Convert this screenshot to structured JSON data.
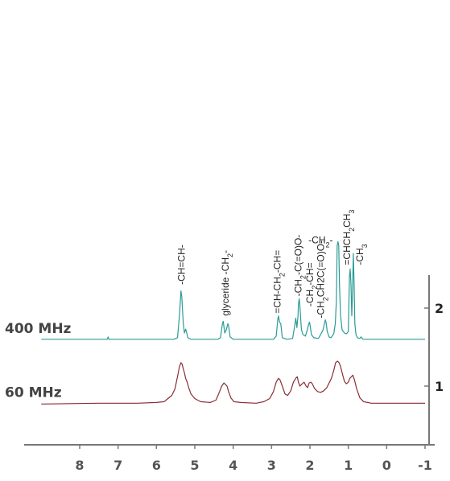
{
  "chart_data": {
    "type": "line",
    "title": "",
    "xlabel": "",
    "ylabel": "",
    "xlim": [
      9,
      -1
    ],
    "x_ticks": [
      "8",
      "7",
      "6",
      "5",
      "4",
      "3",
      "2",
      "1",
      "0",
      "-1"
    ],
    "x_tick_values": [
      8,
      7,
      6,
      5,
      4,
      3,
      2,
      1,
      0,
      -1
    ],
    "ylim": [
      0.55,
      2.85
    ],
    "y_ticks": [
      "1",
      "2"
    ],
    "y_tick_values": [
      1,
      2
    ],
    "series": [
      {
        "name": "400 MHz",
        "color": "#2a9b96",
        "baseline": 1.6,
        "points": [
          [
            9.0,
            1.6
          ],
          [
            7.28,
            1.6
          ],
          [
            7.26,
            1.63
          ],
          [
            7.24,
            1.6
          ],
          [
            5.55,
            1.6
          ],
          [
            5.45,
            1.62
          ],
          [
            5.4,
            1.9
          ],
          [
            5.36,
            2.22
          ],
          [
            5.34,
            2.15
          ],
          [
            5.32,
            1.98
          ],
          [
            5.3,
            1.8
          ],
          [
            5.27,
            1.68
          ],
          [
            5.24,
            1.73
          ],
          [
            5.22,
            1.7
          ],
          [
            5.18,
            1.62
          ],
          [
            5.1,
            1.6
          ],
          [
            4.4,
            1.6
          ],
          [
            4.33,
            1.62
          ],
          [
            4.28,
            1.8
          ],
          [
            4.26,
            1.83
          ],
          [
            4.22,
            1.68
          ],
          [
            4.18,
            1.72
          ],
          [
            4.14,
            1.8
          ],
          [
            4.12,
            1.78
          ],
          [
            4.08,
            1.63
          ],
          [
            4.0,
            1.6
          ],
          [
            2.95,
            1.6
          ],
          [
            2.88,
            1.64
          ],
          [
            2.84,
            1.85
          ],
          [
            2.82,
            1.9
          ],
          [
            2.79,
            1.82
          ],
          [
            2.76,
            1.8
          ],
          [
            2.72,
            1.62
          ],
          [
            2.6,
            1.6
          ],
          [
            2.45,
            1.61
          ],
          [
            2.4,
            1.76
          ],
          [
            2.37,
            1.87
          ],
          [
            2.34,
            1.75
          ],
          [
            2.31,
            1.9
          ],
          [
            2.3,
            2.05
          ],
          [
            2.28,
            2.12
          ],
          [
            2.26,
            2.02
          ],
          [
            2.24,
            1.85
          ],
          [
            2.22,
            1.72
          ],
          [
            2.18,
            1.66
          ],
          [
            2.12,
            1.64
          ],
          [
            2.07,
            1.72
          ],
          [
            2.04,
            1.78
          ],
          [
            2.01,
            1.82
          ],
          [
            1.99,
            1.76
          ],
          [
            1.96,
            1.66
          ],
          [
            1.9,
            1.62
          ],
          [
            1.78,
            1.61
          ],
          [
            1.72,
            1.66
          ],
          [
            1.66,
            1.72
          ],
          [
            1.6,
            1.85
          ],
          [
            1.58,
            1.82
          ],
          [
            1.55,
            1.7
          ],
          [
            1.5,
            1.63
          ],
          [
            1.45,
            1.62
          ],
          [
            1.38,
            1.67
          ],
          [
            1.34,
            1.8
          ],
          [
            1.31,
            2.1
          ],
          [
            1.29,
            2.8
          ],
          [
            1.27,
            2.85
          ],
          [
            1.25,
            2.8
          ],
          [
            1.23,
            2.3
          ],
          [
            1.2,
            1.9
          ],
          [
            1.16,
            1.72
          ],
          [
            1.1,
            1.68
          ],
          [
            1.05,
            1.67
          ],
          [
            1.0,
            1.7
          ],
          [
            0.97,
            2.4
          ],
          [
            0.95,
            2.5
          ],
          [
            0.93,
            2.3
          ],
          [
            0.91,
            1.9
          ],
          [
            0.89,
            2.2
          ],
          [
            0.87,
            2.7
          ],
          [
            0.85,
            2.35
          ],
          [
            0.83,
            1.8
          ],
          [
            0.8,
            1.66
          ],
          [
            0.76,
            1.62
          ],
          [
            0.7,
            1.61
          ],
          [
            0.67,
            1.63
          ],
          [
            0.62,
            1.6
          ],
          [
            -1.0,
            1.6
          ]
        ]
      },
      {
        "name": "60 MHz",
        "color": "#8a2e35",
        "baseline": 0.78,
        "points": [
          [
            9.0,
            0.77
          ],
          [
            7.5,
            0.78
          ],
          [
            7.0,
            0.78
          ],
          [
            6.5,
            0.78
          ],
          [
            6.0,
            0.79
          ],
          [
            5.8,
            0.8
          ],
          [
            5.7,
            0.84
          ],
          [
            5.6,
            0.88
          ],
          [
            5.52,
            0.96
          ],
          [
            5.45,
            1.12
          ],
          [
            5.4,
            1.25
          ],
          [
            5.36,
            1.3
          ],
          [
            5.33,
            1.28
          ],
          [
            5.3,
            1.22
          ],
          [
            5.27,
            1.17
          ],
          [
            5.24,
            1.1
          ],
          [
            5.2,
            1.05
          ],
          [
            5.16,
            0.98
          ],
          [
            5.1,
            0.9
          ],
          [
            5.0,
            0.84
          ],
          [
            4.85,
            0.8
          ],
          [
            4.6,
            0.79
          ],
          [
            4.45,
            0.82
          ],
          [
            4.38,
            0.9
          ],
          [
            4.3,
            1.0
          ],
          [
            4.24,
            1.04
          ],
          [
            4.2,
            1.02
          ],
          [
            4.16,
            1.0
          ],
          [
            4.12,
            0.93
          ],
          [
            4.06,
            0.85
          ],
          [
            3.98,
            0.8
          ],
          [
            3.8,
            0.79
          ],
          [
            3.4,
            0.78
          ],
          [
            3.2,
            0.8
          ],
          [
            3.05,
            0.84
          ],
          [
            2.95,
            0.93
          ],
          [
            2.88,
            1.05
          ],
          [
            2.82,
            1.1
          ],
          [
            2.78,
            1.08
          ],
          [
            2.72,
            1.0
          ],
          [
            2.65,
            0.9
          ],
          [
            2.58,
            0.88
          ],
          [
            2.5,
            0.94
          ],
          [
            2.43,
            1.05
          ],
          [
            2.37,
            1.1
          ],
          [
            2.33,
            1.12
          ],
          [
            2.3,
            1.05
          ],
          [
            2.26,
            1.0
          ],
          [
            2.2,
            1.03
          ],
          [
            2.15,
            1.05
          ],
          [
            2.1,
            1.0
          ],
          [
            2.06,
            0.98
          ],
          [
            2.02,
            1.04
          ],
          [
            1.98,
            1.05
          ],
          [
            1.94,
            1.03
          ],
          [
            1.88,
            0.97
          ],
          [
            1.8,
            0.93
          ],
          [
            1.72,
            0.92
          ],
          [
            1.64,
            0.94
          ],
          [
            1.56,
            0.98
          ],
          [
            1.5,
            1.04
          ],
          [
            1.44,
            1.1
          ],
          [
            1.38,
            1.2
          ],
          [
            1.33,
            1.3
          ],
          [
            1.28,
            1.32
          ],
          [
            1.24,
            1.3
          ],
          [
            1.2,
            1.25
          ],
          [
            1.15,
            1.15
          ],
          [
            1.1,
            1.06
          ],
          [
            1.05,
            1.03
          ],
          [
            1.0,
            1.05
          ],
          [
            0.96,
            1.1
          ],
          [
            0.92,
            1.12
          ],
          [
            0.88,
            1.14
          ],
          [
            0.84,
            1.08
          ],
          [
            0.78,
            0.96
          ],
          [
            0.7,
            0.85
          ],
          [
            0.6,
            0.8
          ],
          [
            0.4,
            0.78
          ],
          [
            0.0,
            0.78
          ],
          [
            -0.5,
            0.78
          ],
          [
            -1.0,
            0.78
          ]
        ]
      }
    ],
    "peak_labels": [
      {
        "text": "-CH=CH-",
        "x": 5.35,
        "y": 2.3,
        "rotated": true
      },
      {
        "text": "glyceride -CH",
        "sub": "2",
        "tail": "-",
        "x": 4.2,
        "y": 1.9,
        "rotated": true
      },
      {
        "text": "=CH-CH",
        "sub": "2",
        "tail": "-CH=",
        "x": 2.85,
        "y": 1.93,
        "rotated": true
      },
      {
        "text": "-CH",
        "sub": "2",
        "tail": "-C(=O)O-",
        "x": 2.3,
        "y": 2.15,
        "rotated": true
      },
      {
        "text": "-CH",
        "sub": "2",
        "tail": "-CH=",
        "x": 2.0,
        "y": 2.02,
        "rotated": true
      },
      {
        "text": "-CH",
        "sub": "2",
        "tail": "CH2C(=O)O-",
        "x": 1.72,
        "y": 1.87,
        "rotated": true
      },
      {
        "text": "-CH",
        "sub": "2",
        "tail": "-",
        "x": 1.72,
        "y": 2.83,
        "rotated": false
      },
      {
        "text": "=CHCH",
        "sub": "2",
        "tail": "CH",
        "sub2": "3",
        "x": 1.04,
        "y": 2.55,
        "rotated": true
      },
      {
        "text": "-CH",
        "sub": "3",
        "tail": "",
        "x": 0.7,
        "y": 2.55,
        "rotated": true
      }
    ],
    "grid": false,
    "legend": "left"
  }
}
